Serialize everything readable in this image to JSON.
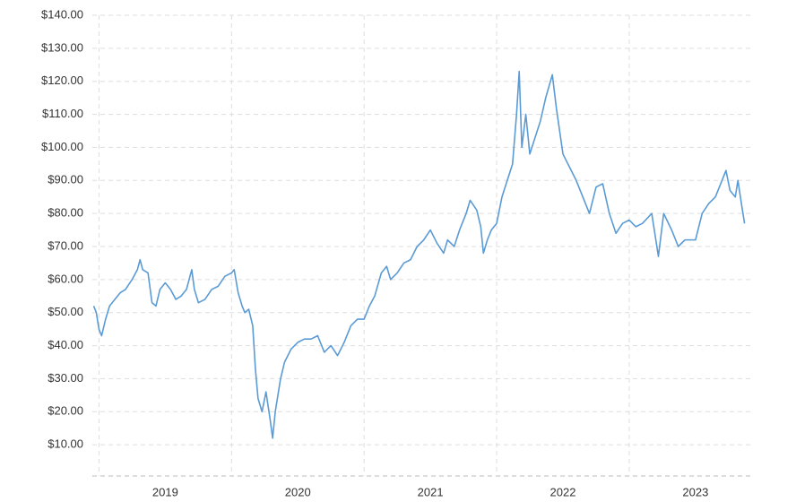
{
  "chart_data": {
    "type": "line",
    "x": [
      2018.96,
      2018.98,
      2019.0,
      2019.02,
      2019.05,
      2019.08,
      2019.12,
      2019.16,
      2019.2,
      2019.25,
      2019.29,
      2019.31,
      2019.33,
      2019.37,
      2019.4,
      2019.43,
      2019.46,
      2019.5,
      2019.54,
      2019.58,
      2019.62,
      2019.66,
      2019.7,
      2019.72,
      2019.75,
      2019.8,
      2019.85,
      2019.9,
      2019.95,
      2020.0,
      2020.02,
      2020.05,
      2020.08,
      2020.1,
      2020.13,
      2020.16,
      2020.18,
      2020.2,
      2020.23,
      2020.26,
      2020.29,
      2020.31,
      2020.33,
      2020.37,
      2020.4,
      2020.45,
      2020.5,
      2020.55,
      2020.6,
      2020.65,
      2020.7,
      2020.75,
      2020.8,
      2020.85,
      2020.9,
      2020.95,
      2021.0,
      2021.04,
      2021.08,
      2021.13,
      2021.17,
      2021.2,
      2021.25,
      2021.3,
      2021.35,
      2021.4,
      2021.45,
      2021.5,
      2021.55,
      2021.6,
      2021.63,
      2021.68,
      2021.72,
      2021.77,
      2021.8,
      2021.85,
      2021.88,
      2021.9,
      2021.93,
      2021.96,
      2022.0,
      2022.04,
      2022.08,
      2022.12,
      2022.15,
      2022.17,
      2022.19,
      2022.22,
      2022.25,
      2022.29,
      2022.33,
      2022.37,
      2022.42,
      2022.45,
      2022.5,
      2022.55,
      2022.6,
      2022.65,
      2022.7,
      2022.75,
      2022.8,
      2022.85,
      2022.9,
      2022.95,
      2023.0,
      2023.05,
      2023.1,
      2023.17,
      2023.22,
      2023.26,
      2023.32,
      2023.37,
      2023.42,
      2023.5,
      2023.55,
      2023.6,
      2023.65,
      2023.7,
      2023.73,
      2023.76,
      2023.8,
      2023.82,
      2023.85,
      2023.87
    ],
    "values": [
      52,
      50,
      45,
      43,
      48,
      52,
      54,
      56,
      57,
      60,
      63,
      66,
      63,
      62,
      53,
      52,
      57,
      59,
      57,
      54,
      55,
      57,
      63,
      57,
      53,
      54,
      57,
      58,
      61,
      62,
      63,
      56,
      52,
      50,
      51,
      46,
      33,
      24,
      20,
      26,
      18,
      12,
      20,
      30,
      35,
      39,
      41,
      42,
      42,
      43,
      38,
      40,
      37,
      41,
      46,
      48,
      48,
      52,
      55,
      62,
      64,
      60,
      62,
      65,
      66,
      70,
      72,
      75,
      71,
      68,
      72,
      70,
      75,
      80,
      84,
      81,
      76,
      68,
      72,
      75,
      77,
      85,
      90,
      95,
      110,
      123,
      100,
      110,
      98,
      103,
      108,
      115,
      122,
      112,
      98,
      94,
      90,
      85,
      80,
      88,
      89,
      80,
      74,
      77,
      78,
      76,
      77,
      80,
      67,
      80,
      75,
      70,
      72,
      72,
      80,
      83,
      85,
      90,
      93,
      87,
      85,
      90,
      82,
      77
    ],
    "color": "#5b9bd5",
    "xlim": [
      2018.95,
      2023.92
    ],
    "xticks": [
      2019,
      2020,
      2021,
      2022,
      2023
    ],
    "ylim": [
      0,
      140
    ],
    "yticks": [
      {
        "value": 10,
        "label": "$10.00"
      },
      {
        "value": 20,
        "label": "$20.00"
      },
      {
        "value": 30,
        "label": "$30.00"
      },
      {
        "value": 40,
        "label": "$40.00"
      },
      {
        "value": 50,
        "label": "$50.00"
      },
      {
        "value": 60,
        "label": "$60.00"
      },
      {
        "value": 70,
        "label": "$70.00"
      },
      {
        "value": 80,
        "label": "$80.00"
      },
      {
        "value": 90,
        "label": "$90.00"
      },
      {
        "value": 100,
        "label": "$100.00"
      },
      {
        "value": 110,
        "label": "$110.00"
      },
      {
        "value": 120,
        "label": "$120.00"
      },
      {
        "value": 130,
        "label": "$130.00"
      },
      {
        "value": 140,
        "label": "$140.00"
      }
    ],
    "grid": true
  }
}
